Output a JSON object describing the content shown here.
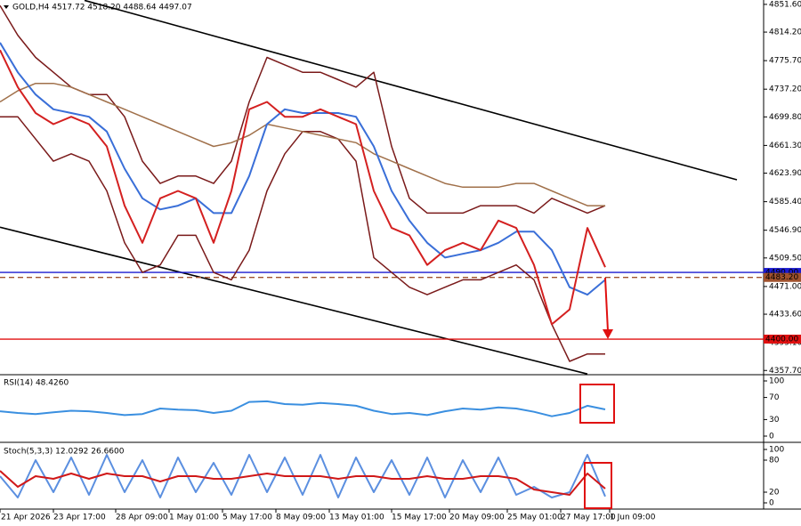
{
  "chart_data": [
    {
      "type": "line",
      "title": "GOLD,H4  4517.72 4518.20 4488.64 4497.07",
      "x": [
        0,
        4,
        8,
        12,
        16,
        20,
        24,
        28,
        32,
        36,
        40,
        44,
        48,
        52,
        56,
        60,
        64,
        68,
        72,
        76,
        80,
        84,
        88,
        92,
        96,
        100,
        104,
        108,
        112,
        116,
        120,
        124,
        128,
        132,
        136
      ],
      "xlim": [
        0,
        172
      ],
      "xticks": [
        {
          "value": 0,
          "label": "21 Apr 2026"
        },
        {
          "value": 12,
          "label": "23 Apr 17:00"
        },
        {
          "value": 26,
          "label": "28 Apr 09:00"
        },
        {
          "value": 38,
          "label": "1 May 01:00"
        },
        {
          "value": 50,
          "label": "5 May 17:00"
        },
        {
          "value": 62,
          "label": "8 May 09:00"
        },
        {
          "value": 74,
          "label": "13 May 01:00"
        },
        {
          "value": 88,
          "label": "15 May 17:00"
        },
        {
          "value": 101,
          "label": "20 May 09:00"
        },
        {
          "value": 114,
          "label": "25 May 01:00"
        },
        {
          "value": 126,
          "label": "27 May 17:00"
        },
        {
          "value": 137,
          "label": "1 Jun 09:00"
        }
      ],
      "ylim": [
        4352,
        4857.5
      ],
      "yticks": [
        {
          "value": 4357.7,
          "label": "4357.70"
        },
        {
          "value": 4395.1,
          "label": "4395.10"
        },
        {
          "value": 4433.6,
          "label": "4433.60"
        },
        {
          "value": 4471,
          "label": "4471.00"
        },
        {
          "value": 4509.5,
          "label": "4509.50"
        },
        {
          "value": 4546.9,
          "label": "4546.90"
        },
        {
          "value": 4585.4,
          "label": "4585.40"
        },
        {
          "value": 4623.9,
          "label": "4623.90"
        },
        {
          "value": 4661.3,
          "label": "4661.30"
        },
        {
          "value": 4699.8,
          "label": "4699.80"
        },
        {
          "value": 4737.2,
          "label": "4737.20"
        },
        {
          "value": 4775.7,
          "label": "4775.70"
        },
        {
          "value": 4814.2,
          "label": "4814.20"
        },
        {
          "value": 4851.6,
          "label": "4851.60"
        }
      ],
      "series": [
        {
          "color": "#7a1a1a",
          "values": [
            4850,
            4810,
            4780,
            4760,
            4740,
            4730,
            4730,
            4700,
            4640,
            4610,
            4620,
            4620,
            4610,
            4640,
            4720,
            4780,
            4770,
            4760,
            4760,
            4750,
            4740,
            4760,
            4660,
            4590,
            4570,
            4570,
            4570,
            4580,
            4580,
            4580,
            4570,
            4590,
            4580,
            4570,
            4580
          ]
        },
        {
          "color": "#7a1a1a",
          "values": [
            4700,
            4700,
            4670,
            4640,
            4650,
            4640,
            4600,
            4530,
            4490,
            4500,
            4540,
            4540,
            4490,
            4480,
            4520,
            4600,
            4650,
            4680,
            4680,
            4670,
            4640,
            4510,
            4490,
            4470,
            4460,
            4470,
            4480,
            4480,
            4490,
            4500,
            4480,
            4420,
            4370,
            4380,
            4380
          ]
        },
        {
          "color": "#a0704a",
          "values": [
            4720,
            4735,
            4745,
            4745,
            4740,
            4730,
            4720,
            4710,
            4700,
            4690,
            4680,
            4670,
            4660,
            4665,
            4675,
            4690,
            4685,
            4680,
            4675,
            4670,
            4665,
            4650,
            4640,
            4630,
            4620,
            4610,
            4605,
            4605,
            4605,
            4610,
            4610,
            4600,
            4590,
            4580,
            4580
          ]
        },
        {
          "color": "#3a6fd8",
          "values": [
            4800,
            4760,
            4730,
            4710,
            4705,
            4700,
            4680,
            4630,
            4590,
            4575,
            4580,
            4590,
            4570,
            4570,
            4620,
            4690,
            4710,
            4705,
            4705,
            4705,
            4700,
            4660,
            4600,
            4560,
            4530,
            4510,
            4515,
            4520,
            4530,
            4545,
            4545,
            4520,
            4470,
            4460,
            4480
          ]
        },
        {
          "color": "#d42020",
          "values": [
            4790,
            4740,
            4705,
            4690,
            4700,
            4690,
            4660,
            4580,
            4530,
            4590,
            4600,
            4590,
            4530,
            4600,
            4710,
            4720,
            4700,
            4700,
            4710,
            4700,
            4690,
            4600,
            4550,
            4540,
            4500,
            4520,
            4530,
            4520,
            4560,
            4550,
            4500,
            4420,
            4440,
            4550,
            4497.07
          ]
        }
      ],
      "levels": [
        {
          "value": 4490,
          "label": "4490.00",
          "color": "#1a1ad0"
        },
        {
          "value": 4483.2,
          "label": "4483.20",
          "color": "#a0522d"
        },
        {
          "value": 4400,
          "label": "4400.00",
          "color": "#e01010"
        }
      ],
      "trendlines": [
        {
          "x": [
            19,
            165.6
          ],
          "y": [
            4857,
            4615
          ]
        },
        {
          "x": [
            0,
            132
          ],
          "y": [
            4551,
            4353
          ]
        }
      ]
    },
    {
      "type": "line",
      "title": "RSI(14) 48.4260",
      "ylim": [
        0,
        100
      ],
      "yticks": [
        0,
        30,
        70,
        100
      ],
      "series": [
        {
          "color": "#3a8fe0",
          "values": [
            45,
            42,
            40,
            43,
            46,
            45,
            42,
            38,
            40,
            50,
            48,
            47,
            42,
            46,
            62,
            63,
            58,
            57,
            60,
            58,
            55,
            46,
            40,
            42,
            38,
            45,
            50,
            48,
            52,
            50,
            44,
            36,
            42,
            55,
            48.426
          ]
        }
      ]
    },
    {
      "type": "line",
      "title": "Stoch(5,3,3) 12.0292 26.6600",
      "ylim": [
        0,
        100
      ],
      "yticks": [
        0,
        20,
        80,
        100
      ],
      "series": [
        {
          "color": "#5b8fe0",
          "values": [
            50,
            10,
            80,
            20,
            85,
            15,
            90,
            20,
            80,
            10,
            85,
            20,
            75,
            15,
            90,
            20,
            85,
            15,
            90,
            10,
            85,
            20,
            80,
            15,
            85,
            10,
            80,
            20,
            85,
            15,
            30,
            10,
            20,
            90,
            12.0292
          ]
        },
        {
          "color": "#d01818",
          "values": [
            60,
            30,
            50,
            45,
            55,
            45,
            55,
            50,
            50,
            40,
            50,
            50,
            45,
            45,
            50,
            55,
            50,
            50,
            50,
            45,
            50,
            50,
            45,
            45,
            50,
            45,
            45,
            50,
            50,
            45,
            25,
            20,
            15,
            55,
            26.66
          ]
        }
      ]
    }
  ]
}
